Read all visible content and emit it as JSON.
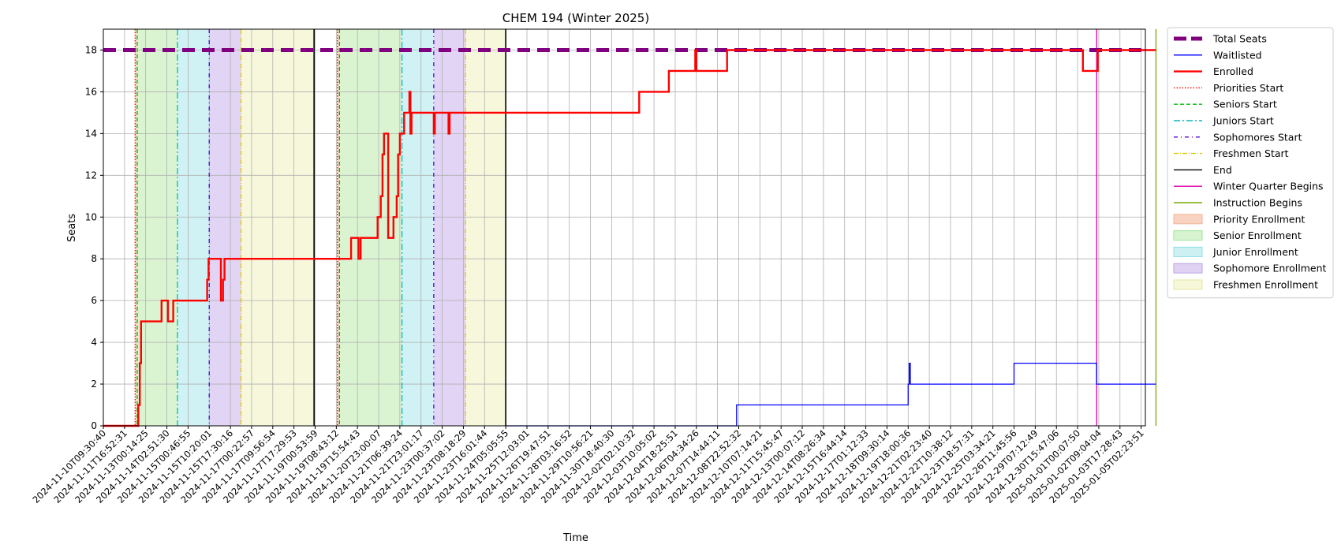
{
  "chart_data": {
    "type": "line",
    "title": "CHEM 194 (Winter 2025)",
    "xlabel": "Time",
    "ylabel": "Seats",
    "ylim": [
      0,
      19
    ],
    "yticks": [
      0,
      2,
      4,
      6,
      8,
      10,
      12,
      14,
      16,
      18
    ],
    "grid": true,
    "legend_position": "outside-right",
    "x_ticks": [
      "2024-11-10T09:30:40",
      "2024-11-11T16:52:31",
      "2024-11-13T00:14:25",
      "2024-11-14T02:51:30",
      "2024-11-15T00:46:55",
      "2024-11-15T10:20:01",
      "2024-11-15T17:30:16",
      "2024-11-17T00:22:57",
      "2024-11-17T09:56:54",
      "2024-11-17T17:29:53",
      "2024-11-19T00:53:59",
      "2024-11-19T08:43:12",
      "2024-11-19T15:54:43",
      "2024-11-20T23:00:07",
      "2024-11-21T06:39:24",
      "2024-11-21T23:01:17",
      "2024-11-23T00:37:02",
      "2024-11-23T08:18:29",
      "2024-11-23T16:01:44",
      "2024-11-24T05:05:55",
      "2024-11-25T12:03:01",
      "2024-11-26T19:47:51",
      "2024-11-28T03:16:52",
      "2024-11-29T10:56:21",
      "2024-11-30T18:40:30",
      "2024-12-02T02:10:32",
      "2024-12-03T10:05:02",
      "2024-12-04T18:25:51",
      "2024-12-06T04:34:26",
      "2024-12-07T14:44:11",
      "2024-12-08T22:52:32",
      "2024-12-10T07:14:21",
      "2024-12-11T15:45:47",
      "2024-12-13T00:07:12",
      "2024-12-14T08:26:34",
      "2024-12-15T16:44:14",
      "2024-12-17T01:12:33",
      "2024-12-18T09:30:14",
      "2024-12-19T18:00:36",
      "2024-12-21T02:23:40",
      "2024-12-22T10:38:12",
      "2024-12-23T18:57:31",
      "2024-12-25T03:34:21",
      "2024-12-26T11:45:56",
      "2024-12-29T07:12:49",
      "2024-12-30T15:47:06",
      "2025-01-01T00:07:50",
      "2025-01-02T09:04:04",
      "2025-01-03T17:28:43",
      "2025-01-05T02:23:51"
    ],
    "total_seats": 18,
    "series": [
      {
        "name": "Enrolled",
        "color": "#ff0000",
        "steps": [
          [
            0,
            0
          ],
          [
            1.65,
            0
          ],
          [
            1.65,
            1
          ],
          [
            1.72,
            1
          ],
          [
            1.72,
            3
          ],
          [
            1.78,
            3
          ],
          [
            1.78,
            5
          ],
          [
            2.75,
            5
          ],
          [
            2.75,
            6
          ],
          [
            3.05,
            6
          ],
          [
            3.05,
            5
          ],
          [
            3.3,
            5
          ],
          [
            3.3,
            6
          ],
          [
            4.9,
            6
          ],
          [
            4.9,
            7
          ],
          [
            4.97,
            7
          ],
          [
            4.97,
            8
          ],
          [
            5.55,
            8
          ],
          [
            5.55,
            6
          ],
          [
            5.65,
            6
          ],
          [
            5.65,
            7
          ],
          [
            5.72,
            7
          ],
          [
            5.72,
            8
          ],
          [
            11.7,
            8
          ],
          [
            11.7,
            9
          ],
          [
            12.05,
            9
          ],
          [
            12.05,
            8
          ],
          [
            12.15,
            8
          ],
          [
            12.15,
            9
          ],
          [
            12.95,
            9
          ],
          [
            12.95,
            10
          ],
          [
            13.1,
            10
          ],
          [
            13.1,
            11
          ],
          [
            13.18,
            11
          ],
          [
            13.18,
            13
          ],
          [
            13.25,
            13
          ],
          [
            13.25,
            14
          ],
          [
            13.45,
            14
          ],
          [
            13.45,
            9
          ],
          [
            13.7,
            9
          ],
          [
            13.7,
            10
          ],
          [
            13.85,
            10
          ],
          [
            13.85,
            11
          ],
          [
            13.92,
            11
          ],
          [
            13.92,
            13
          ],
          [
            14.0,
            13
          ],
          [
            14.0,
            14
          ],
          [
            14.2,
            14
          ],
          [
            14.2,
            15
          ],
          [
            14.45,
            15
          ],
          [
            14.45,
            16
          ],
          [
            14.5,
            16
          ],
          [
            14.5,
            14
          ],
          [
            14.55,
            14
          ],
          [
            14.55,
            15
          ],
          [
            15.6,
            15
          ],
          [
            15.6,
            14
          ],
          [
            15.65,
            14
          ],
          [
            15.65,
            15
          ],
          [
            16.3,
            15
          ],
          [
            16.3,
            14
          ],
          [
            16.35,
            14
          ],
          [
            16.35,
            15
          ],
          [
            25.3,
            15
          ],
          [
            25.3,
            16
          ],
          [
            26.7,
            16
          ],
          [
            26.7,
            17
          ],
          [
            27.95,
            17
          ],
          [
            27.95,
            18
          ],
          [
            28.0,
            18
          ],
          [
            28.0,
            17
          ],
          [
            29.45,
            17
          ],
          [
            29.45,
            18
          ],
          [
            46.25,
            18
          ],
          [
            46.25,
            17
          ],
          [
            46.95,
            17
          ],
          [
            46.95,
            18
          ],
          [
            49.7,
            18
          ]
        ]
      },
      {
        "name": "Waitlisted",
        "color": "#0000ff",
        "steps": [
          [
            19.0,
            0
          ],
          [
            29.9,
            0
          ],
          [
            29.9,
            1
          ],
          [
            38.0,
            1
          ],
          [
            38.0,
            2
          ],
          [
            38.05,
            2
          ],
          [
            38.05,
            3
          ],
          [
            38.1,
            3
          ],
          [
            38.1,
            2
          ],
          [
            43.0,
            2
          ],
          [
            43.0,
            3
          ],
          [
            46.9,
            3
          ],
          [
            46.9,
            2
          ],
          [
            49.7,
            2
          ]
        ]
      }
    ],
    "phases": [
      {
        "name": "Priority Enrollment",
        "start": 1.5,
        "end": 1.6,
        "fill": "#f8d3c2"
      },
      {
        "name": "Senior Enrollment",
        "start": 1.6,
        "end": 3.5,
        "fill": "#d8f3d0"
      },
      {
        "name": "Junior Enrollment",
        "start": 3.5,
        "end": 5.0,
        "fill": "#cdf1f3"
      },
      {
        "name": "Sophomore Enrollment",
        "start": 5.0,
        "end": 6.5,
        "fill": "#dfd2f3"
      },
      {
        "name": "Freshmen Enrollment",
        "start": 6.5,
        "end": 9.95,
        "fill": "#f7f7da"
      },
      {
        "name": "Priority Enrollment",
        "start": 11.05,
        "end": 11.15,
        "fill": "#f8d3c2"
      },
      {
        "name": "Senior Enrollment",
        "start": 11.15,
        "end": 14.1,
        "fill": "#d8f3d0"
      },
      {
        "name": "Junior Enrollment",
        "start": 14.1,
        "end": 15.6,
        "fill": "#cdf1f3"
      },
      {
        "name": "Sophomore Enrollment",
        "start": 15.6,
        "end": 17.1,
        "fill": "#dfd2f3"
      },
      {
        "name": "Freshmen Enrollment",
        "start": 17.1,
        "end": 19.0,
        "fill": "#f7f7da"
      }
    ],
    "vlines": [
      {
        "name": "Priorities Start",
        "x": 1.5,
        "color": "#ff0000",
        "dash": "1.5,2"
      },
      {
        "name": "Seniors Start",
        "x": 1.6,
        "color": "#00bb00",
        "dash": "5,3"
      },
      {
        "name": "Juniors Start",
        "x": 3.5,
        "color": "#00bbbb",
        "dash": "8,3,2,3"
      },
      {
        "name": "Sophomores Start",
        "x": 5.0,
        "color": "#5500dd",
        "dash": "5,4,1,4"
      },
      {
        "name": "Freshmen Start",
        "x": 6.5,
        "color": "#ddcc00",
        "dash": "6,2,1,2"
      },
      {
        "name": "End",
        "x": 9.95,
        "color": "#000000",
        "dash": ""
      },
      {
        "name": "Priorities Start",
        "x": 11.05,
        "color": "#ff0000",
        "dash": "1.5,2"
      },
      {
        "name": "Seniors Start",
        "x": 11.15,
        "color": "#00bb00",
        "dash": "5,3"
      },
      {
        "name": "Juniors Start",
        "x": 14.1,
        "color": "#00bbbb",
        "dash": "8,3,2,3"
      },
      {
        "name": "Sophomores Start",
        "x": 15.6,
        "color": "#5500dd",
        "dash": "5,4,1,4"
      },
      {
        "name": "Freshmen Start",
        "x": 17.1,
        "color": "#ddcc00",
        "dash": "6,2,1,2"
      },
      {
        "name": "End",
        "x": 19.0,
        "color": "#000000",
        "dash": ""
      },
      {
        "name": "Winter Quarter Begins",
        "x": 46.9,
        "color": "#dd00aa",
        "dash": ""
      },
      {
        "name": "Instruction Begins",
        "x": 49.7,
        "color": "#77aa00",
        "dash": ""
      }
    ],
    "legend": [
      {
        "label": "Total Seats",
        "kind": "thickdash",
        "color": "#800080"
      },
      {
        "label": "Waitlisted",
        "kind": "line",
        "color": "#0000ff"
      },
      {
        "label": "Enrolled",
        "kind": "thickline",
        "color": "#ff0000"
      },
      {
        "label": "Priorities Start",
        "kind": "line",
        "color": "#ff0000",
        "dash": "1.5,2"
      },
      {
        "label": "Seniors Start",
        "kind": "line",
        "color": "#00bb00",
        "dash": "5,3"
      },
      {
        "label": "Juniors Start",
        "kind": "line",
        "color": "#00bbbb",
        "dash": "8,3,2,3"
      },
      {
        "label": "Sophomores Start",
        "kind": "line",
        "color": "#5500dd",
        "dash": "5,4,1,4"
      },
      {
        "label": "Freshmen Start",
        "kind": "line",
        "color": "#ddcc00",
        "dash": "6,2,1,2"
      },
      {
        "label": "End",
        "kind": "line",
        "color": "#000000"
      },
      {
        "label": "Winter Quarter Begins",
        "kind": "line",
        "color": "#dd00aa"
      },
      {
        "label": "Instruction Begins",
        "kind": "line",
        "color": "#77aa00"
      },
      {
        "label": "Priority Enrollment",
        "kind": "patch",
        "color": "#f8d3c2",
        "edge": "#f0b49a"
      },
      {
        "label": "Senior Enrollment",
        "kind": "patch",
        "color": "#d8f3d0",
        "edge": "#9ee39a"
      },
      {
        "label": "Junior Enrollment",
        "kind": "patch",
        "color": "#cdf1f3",
        "edge": "#8fe0e6"
      },
      {
        "label": "Sophomore Enrollment",
        "kind": "patch",
        "color": "#dfd2f3",
        "edge": "#bca5e6"
      },
      {
        "label": "Freshmen Enrollment",
        "kind": "patch",
        "color": "#f7f7da",
        "edge": "#e6e6a6"
      }
    ]
  }
}
